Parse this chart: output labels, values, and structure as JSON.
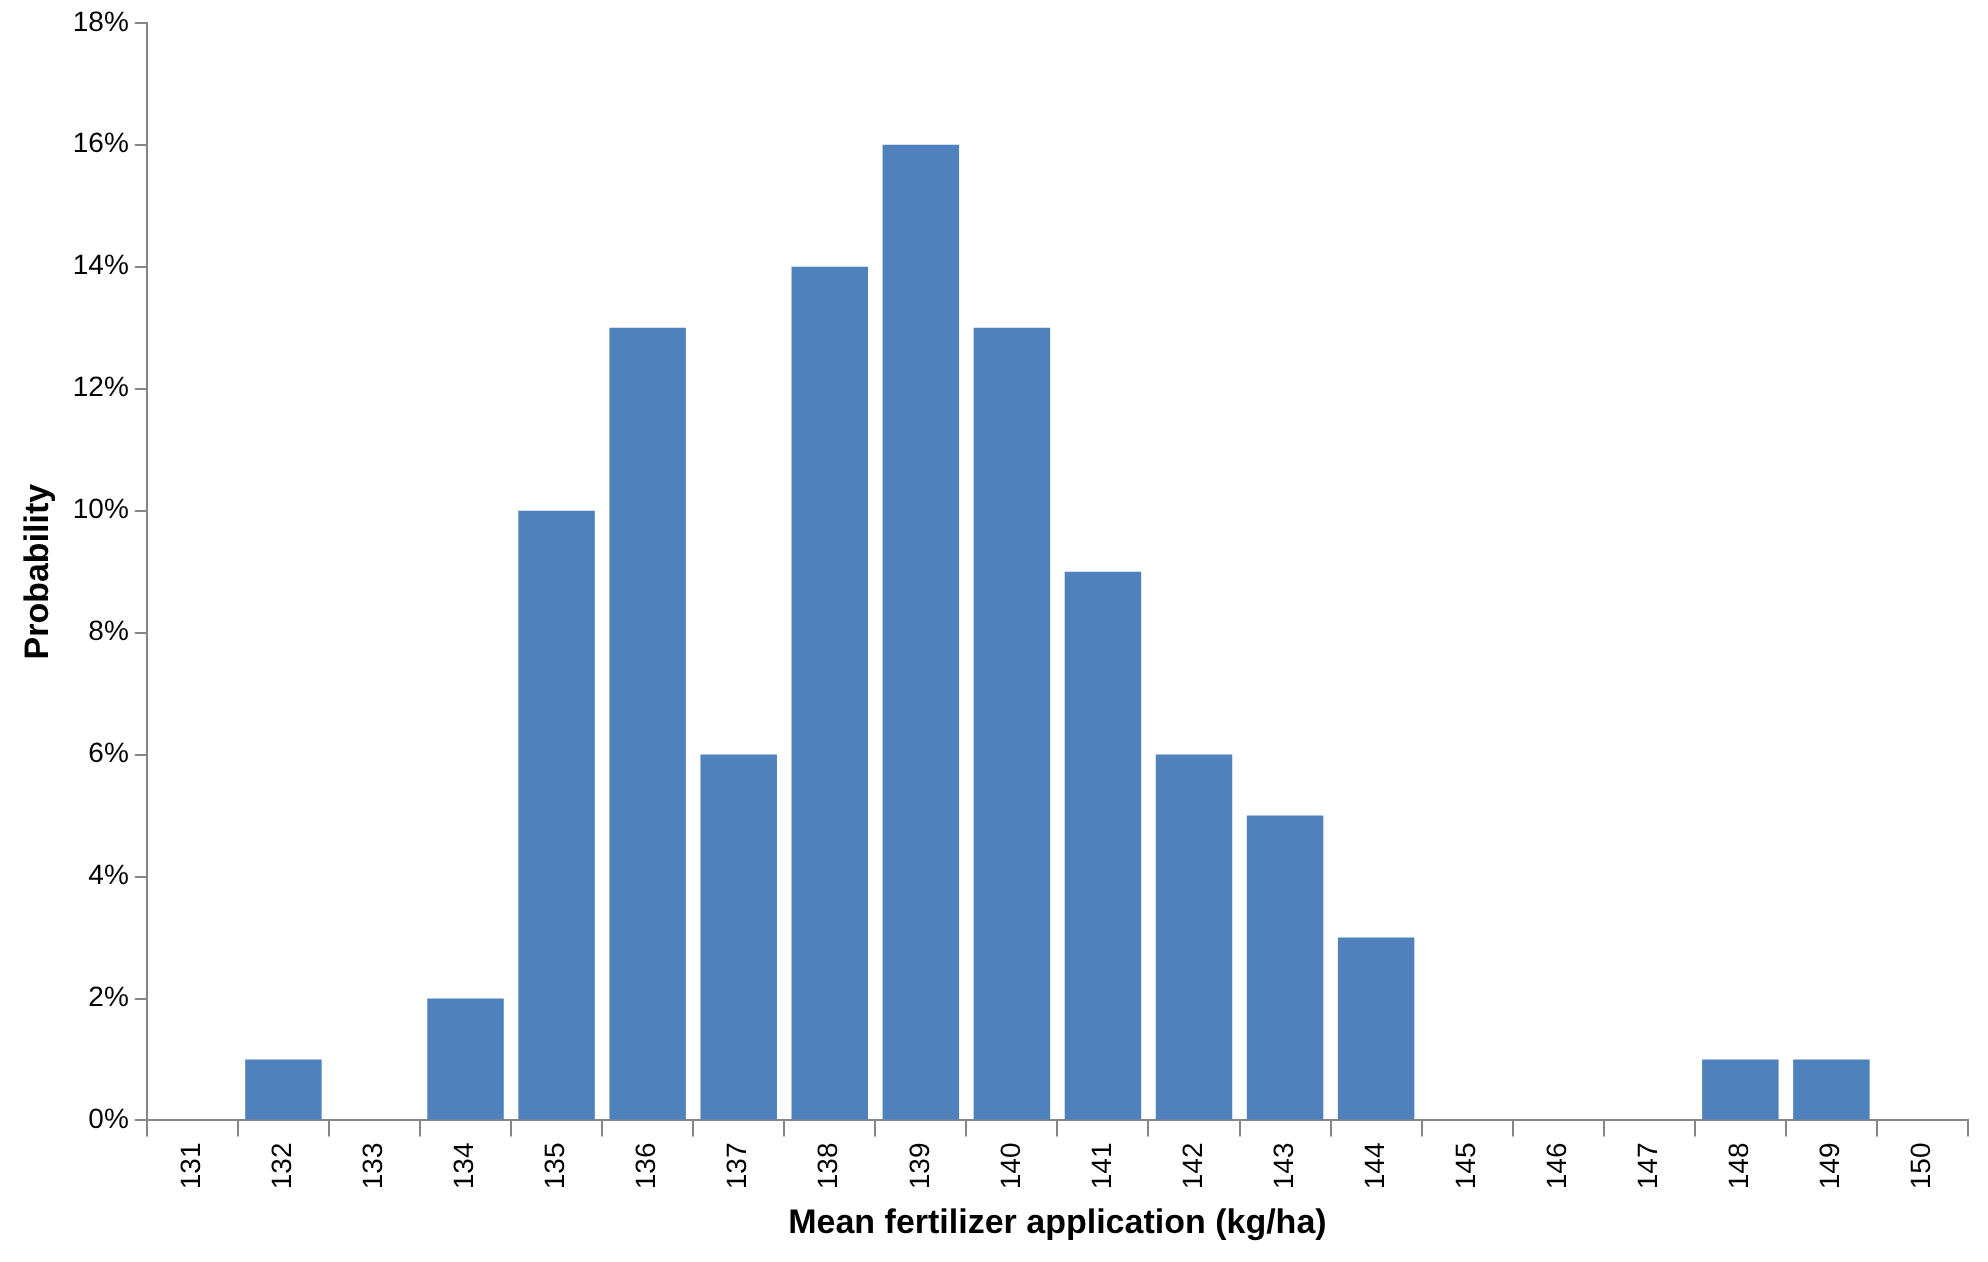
{
  "chart_data": {
    "type": "bar",
    "xlabel": "Mean fertilizer application (kg/ha)",
    "ylabel": "Probability",
    "categories": [
      "131",
      "132",
      "133",
      "134",
      "135",
      "136",
      "137",
      "138",
      "139",
      "140",
      "141",
      "142",
      "143",
      "144",
      "145",
      "146",
      "147",
      "148",
      "149",
      "150"
    ],
    "values": [
      0,
      1,
      0,
      2,
      10,
      13,
      6,
      14,
      16,
      13,
      9,
      6,
      5,
      3,
      0,
      0,
      0,
      1,
      1,
      0
    ],
    "color": "#4f81bd",
    "ylim": [
      0,
      18
    ],
    "yticks": [
      {
        "value": 0,
        "label": "0%"
      },
      {
        "value": 2,
        "label": "2%"
      },
      {
        "value": 4,
        "label": "4%"
      },
      {
        "value": 6,
        "label": "6%"
      },
      {
        "value": 8,
        "label": "8%"
      },
      {
        "value": 10,
        "label": "10%"
      },
      {
        "value": 12,
        "label": "12%"
      },
      {
        "value": 14,
        "label": "14%"
      },
      {
        "value": 16,
        "label": "16%"
      },
      {
        "value": 18,
        "label": "18%"
      }
    ],
    "grid": false,
    "legend": false
  }
}
